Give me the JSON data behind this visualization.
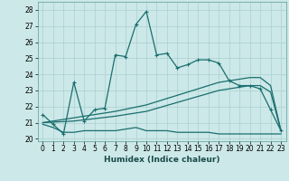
{
  "xlabel": "Humidex (Indice chaleur)",
  "bg_color": "#cce8e8",
  "grid_color": "#aad0d0",
  "line_color": "#1a6e6e",
  "xlim": [
    -0.5,
    23.5
  ],
  "ylim": [
    19.85,
    28.5
  ],
  "yticks": [
    20,
    21,
    22,
    23,
    24,
    25,
    26,
    27,
    28
  ],
  "xticks": [
    0,
    1,
    2,
    3,
    4,
    5,
    6,
    7,
    8,
    9,
    10,
    11,
    12,
    13,
    14,
    15,
    16,
    17,
    18,
    19,
    20,
    21,
    22,
    23
  ],
  "series1_x": [
    0,
    1,
    2,
    3,
    4,
    5,
    6,
    7,
    8,
    9,
    10,
    11,
    12,
    13,
    14,
    15,
    16,
    17,
    18,
    19,
    20,
    21,
    22,
    23
  ],
  "series1_y": [
    21.5,
    20.9,
    20.3,
    23.5,
    21.1,
    21.8,
    21.9,
    25.2,
    25.1,
    27.1,
    27.9,
    25.2,
    25.3,
    24.4,
    24.6,
    24.9,
    24.9,
    24.7,
    23.6,
    23.3,
    23.3,
    23.1,
    21.8,
    20.5
  ],
  "series2_x": [
    0,
    1,
    2,
    3,
    4,
    5,
    6,
    7,
    8,
    9,
    10,
    11,
    12,
    13,
    14,
    15,
    16,
    17,
    18,
    19,
    20,
    21,
    22,
    23
  ],
  "series2_y": [
    20.9,
    20.7,
    20.4,
    20.4,
    20.5,
    20.5,
    20.5,
    20.5,
    20.6,
    20.7,
    20.5,
    20.5,
    20.5,
    20.4,
    20.4,
    20.4,
    20.4,
    20.3,
    20.3,
    20.3,
    20.3,
    20.3,
    20.3,
    20.3
  ],
  "series3_x": [
    0,
    3,
    7,
    10,
    17,
    18,
    19,
    20,
    21,
    22,
    23
  ],
  "series3_y": [
    21.0,
    21.3,
    21.7,
    22.1,
    23.5,
    23.6,
    23.7,
    23.8,
    23.8,
    23.3,
    20.5
  ],
  "series4_x": [
    0,
    3,
    7,
    10,
    17,
    18,
    19,
    20,
    21,
    22,
    23
  ],
  "series4_y": [
    21.0,
    21.1,
    21.4,
    21.7,
    23.0,
    23.1,
    23.2,
    23.3,
    23.3,
    22.9,
    20.5
  ]
}
